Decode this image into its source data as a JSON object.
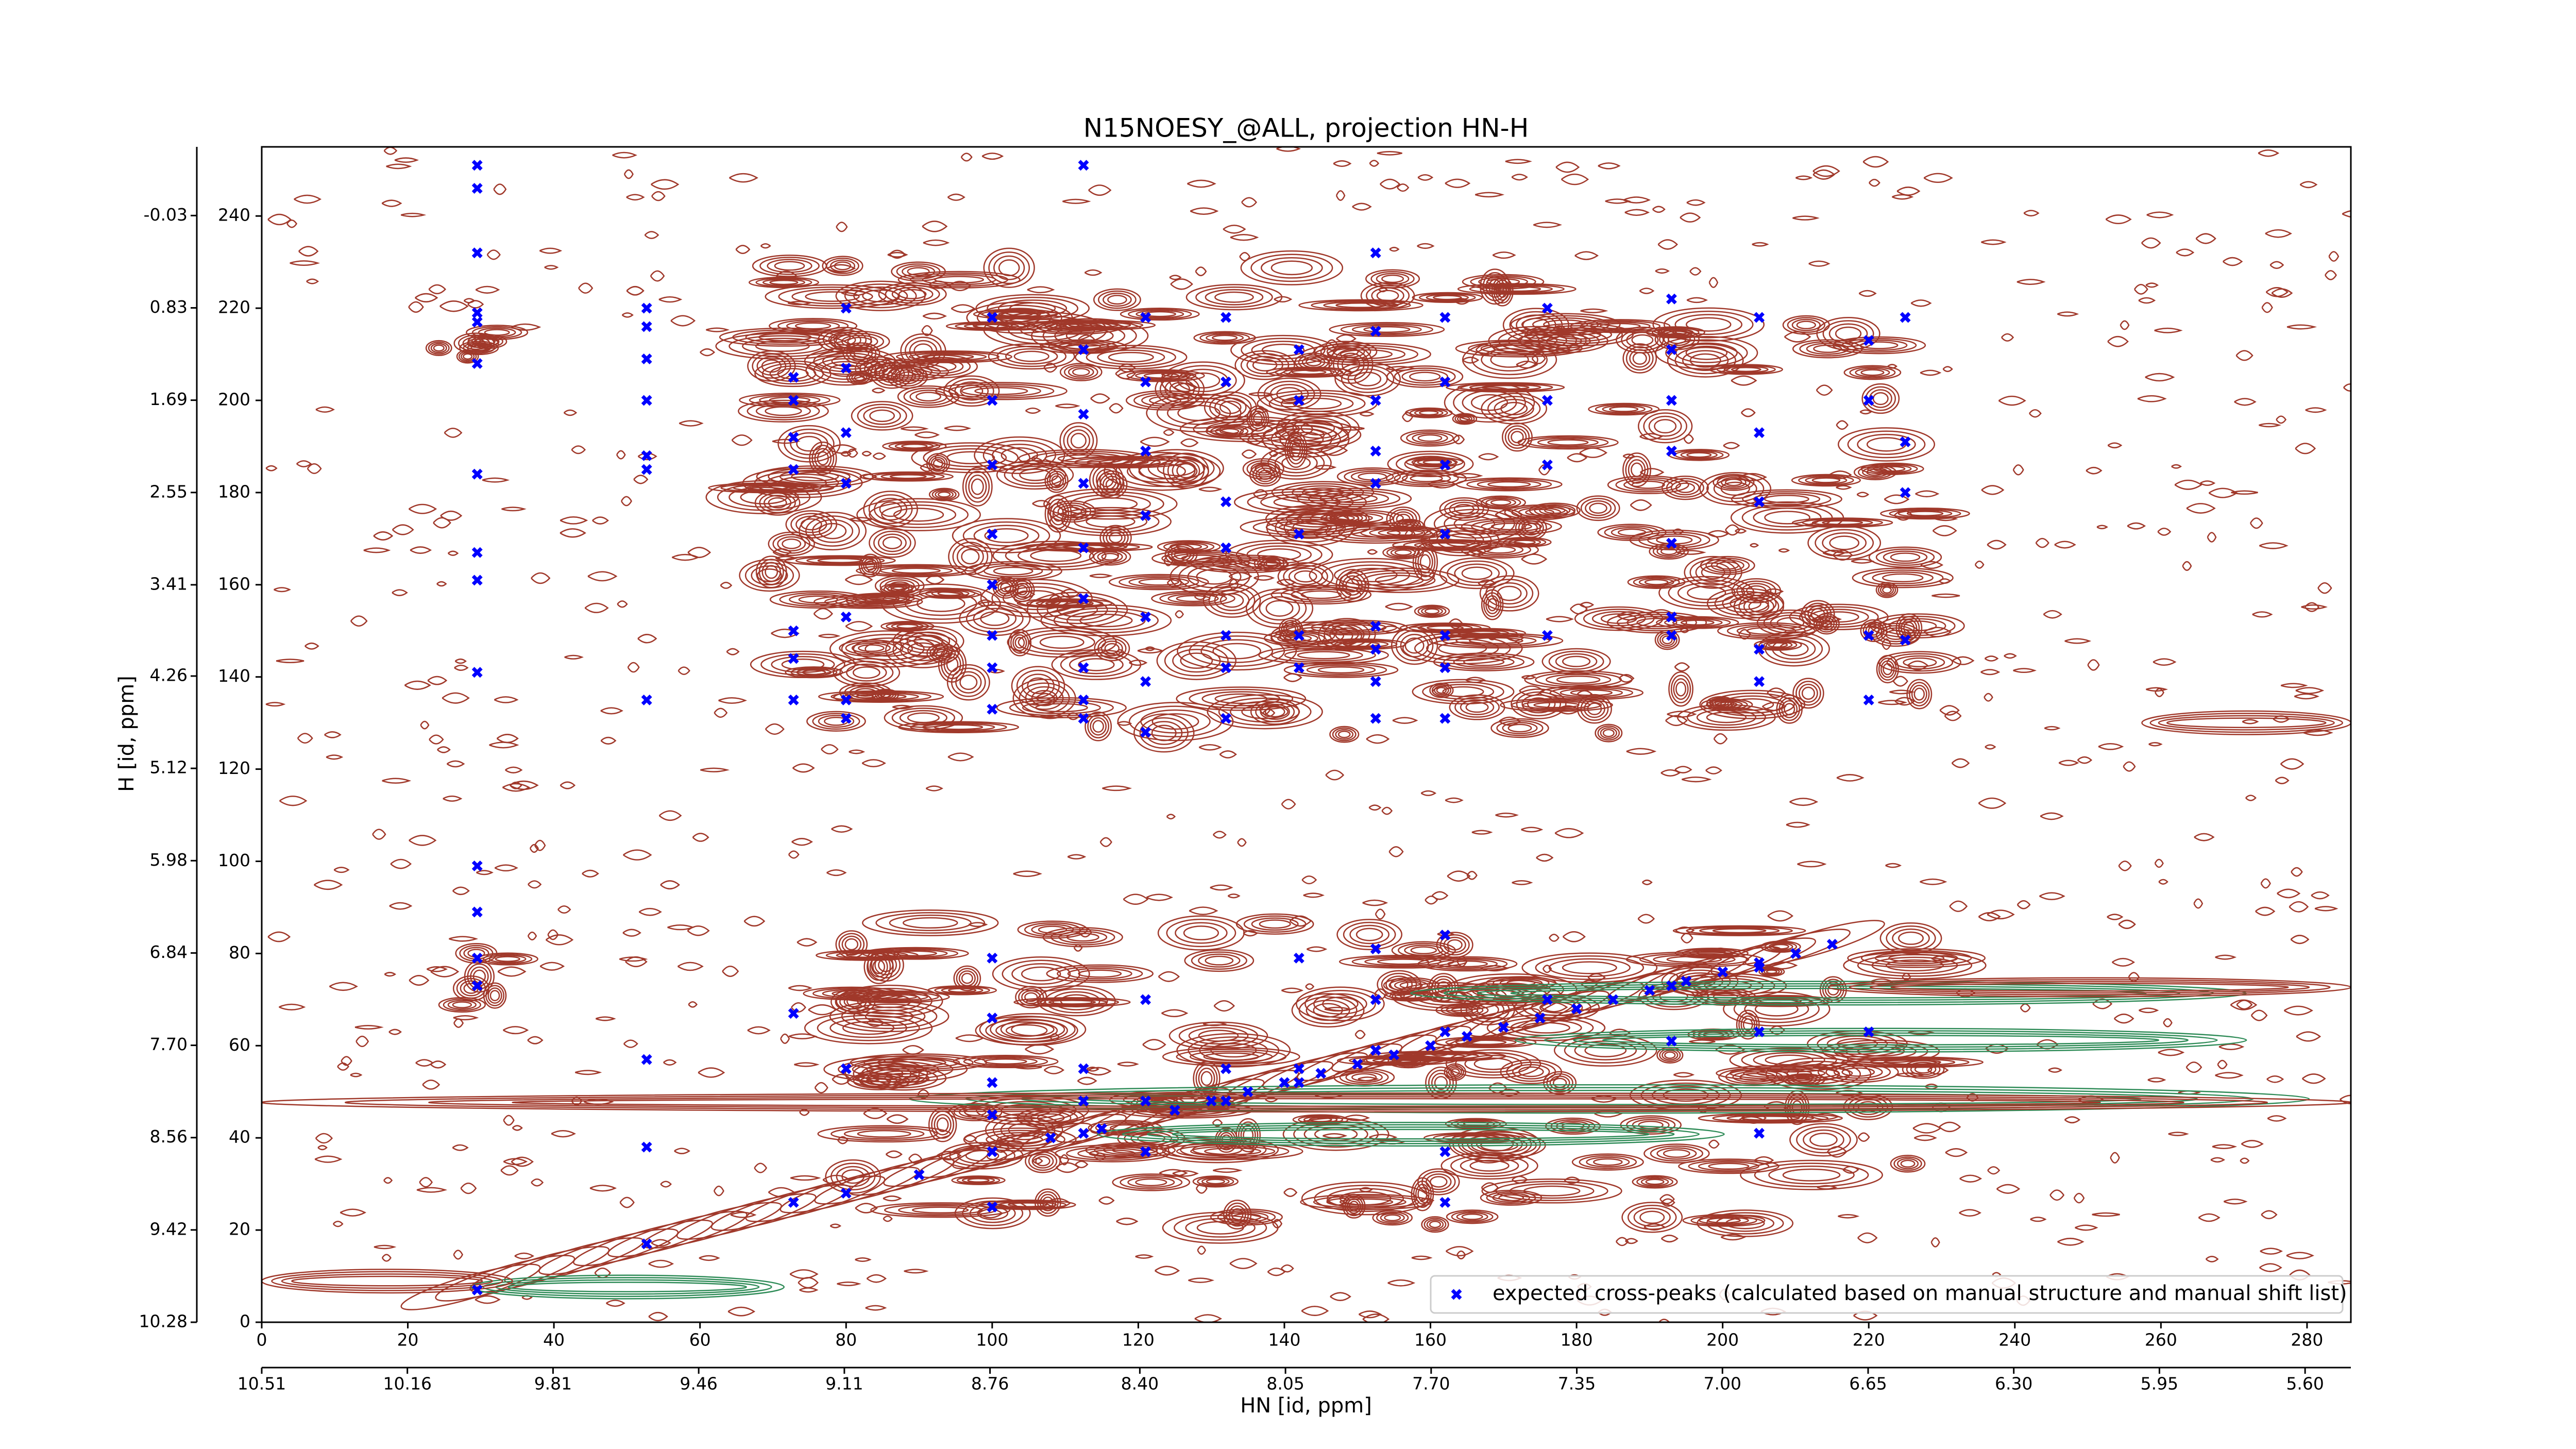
{
  "chart_data": {
    "type": "scatter",
    "title": "N15NOESY_@ALL, projection HN-H",
    "xlabel": "HN [id, ppm]",
    "ylabel": "H [id, ppm]",
    "xlim": [
      0,
      286
    ],
    "xticks": [
      0,
      20,
      40,
      60,
      80,
      100,
      120,
      140,
      160,
      180,
      200,
      220,
      240,
      260,
      280
    ],
    "ylim": [
      0,
      255
    ],
    "yticks": [
      0,
      20,
      40,
      60,
      80,
      100,
      120,
      140,
      160,
      180,
      200,
      220,
      240
    ],
    "x2lim": [
      10.51,
      5.49
    ],
    "x2ticks": [
      10.51,
      10.16,
      9.81,
      9.46,
      9.11,
      8.76,
      {
        "value": 8.4,
        "label": "8.40"
      },
      8.05,
      {
        "value": 7.7,
        "label": "7.70"
      },
      7.35,
      {
        "value": 7.0,
        "label": "7.00"
      },
      6.65,
      {
        "value": 6.3,
        "label": "6.30"
      },
      5.95,
      {
        "value": 5.6,
        "label": "5.60"
      }
    ],
    "y2lim": [
      10.28,
      -0.67
    ],
    "y2ticks": [
      10.28,
      9.42,
      8.56,
      {
        "value": 7.7,
        "label": "7.70"
      },
      6.84,
      5.98,
      5.12,
      4.26,
      3.41,
      2.55,
      1.69,
      0.83,
      -0.03
    ],
    "legend_loc": "lower right",
    "x": [
      29.5,
      29.5,
      29.5,
      29.5,
      29.5,
      29.5,
      29.5,
      29.5,
      29.5,
      29.5,
      29.5,
      29.5,
      29.5,
      29.5,
      29.5,
      52.7,
      52.7,
      52.7,
      52.7,
      52.7,
      52.7,
      52.7,
      52.7,
      52.7,
      52.7,
      72.8,
      72.8,
      72.8,
      72.8,
      72.8,
      72.8,
      72.8,
      72.8,
      72.8,
      80,
      80,
      80,
      80,
      80,
      80,
      80,
      80,
      80,
      100,
      100,
      100,
      100,
      100,
      100,
      100,
      100,
      100,
      100,
      100,
      100,
      100,
      100,
      112.5,
      112.5,
      112.5,
      112.5,
      112.5,
      112.5,
      112.5,
      112.5,
      112.5,
      112.5,
      112.5,
      112.5,
      121,
      121,
      121,
      121,
      121,
      121,
      121,
      121,
      121,
      121,
      132,
      132,
      132,
      132,
      132,
      132,
      132,
      132,
      132,
      142,
      142,
      142,
      142,
      142,
      142,
      142,
      142,
      152.5,
      152.5,
      152.5,
      152.5,
      152.5,
      152.5,
      152.5,
      152.5,
      152.5,
      152.5,
      152.5,
      152.5,
      162,
      162,
      162,
      162,
      162,
      162,
      162,
      162,
      162,
      162,
      162,
      176,
      176,
      176,
      176,
      176,
      193,
      193,
      193,
      193,
      193,
      193,
      193,
      193,
      193,
      205,
      205,
      205,
      205,
      205,
      205,
      205,
      205,
      220,
      220,
      220,
      220,
      220,
      225,
      225,
      225,
      225,
      90,
      108,
      115,
      125,
      130,
      135,
      140,
      145,
      150,
      155,
      160,
      165,
      170,
      175,
      180,
      185,
      190,
      195,
      200,
      205,
      210,
      215
    ],
    "series": [
      {
        "name": "expected cross-peaks (calculated based on manual structure and manual shift list)",
        "color": "#0000ff",
        "values": [
          251,
          246,
          232,
          219,
          217,
          208,
          184,
          167,
          161,
          141,
          99,
          89,
          79,
          73,
          7,
          220,
          216,
          209,
          200,
          188,
          185,
          135,
          57,
          38,
          17,
          205,
          200,
          192,
          185,
          150,
          144,
          135,
          67,
          26,
          220,
          207,
          193,
          182,
          153,
          135,
          131,
          55,
          28,
          218,
          200,
          186,
          171,
          160,
          149,
          142,
          133,
          79,
          66,
          52,
          45,
          37,
          25,
          251,
          211,
          197,
          182,
          168,
          157,
          142,
          135,
          131,
          55,
          48,
          41,
          218,
          204,
          189,
          175,
          153,
          139,
          128,
          70,
          48,
          37,
          218,
          204,
          178,
          168,
          149,
          142,
          131,
          55,
          48,
          211,
          200,
          171,
          149,
          142,
          79,
          55,
          52,
          232,
          215,
          200,
          189,
          182,
          151,
          146,
          139,
          131,
          81,
          70,
          59,
          218,
          204,
          186,
          171,
          149,
          142,
          131,
          84,
          63,
          37,
          26,
          220,
          200,
          186,
          149,
          70,
          222,
          211,
          200,
          189,
          169,
          153,
          149,
          73,
          61,
          218,
          193,
          178,
          146,
          139,
          77,
          63,
          41,
          213,
          200,
          149,
          135,
          63,
          218,
          191,
          180,
          148,
          32,
          40,
          42,
          46,
          48,
          50,
          52,
          54,
          56,
          58,
          60,
          62,
          64,
          66,
          68,
          70,
          72,
          74,
          76,
          78,
          80,
          82
        ]
      }
    ]
  }
}
